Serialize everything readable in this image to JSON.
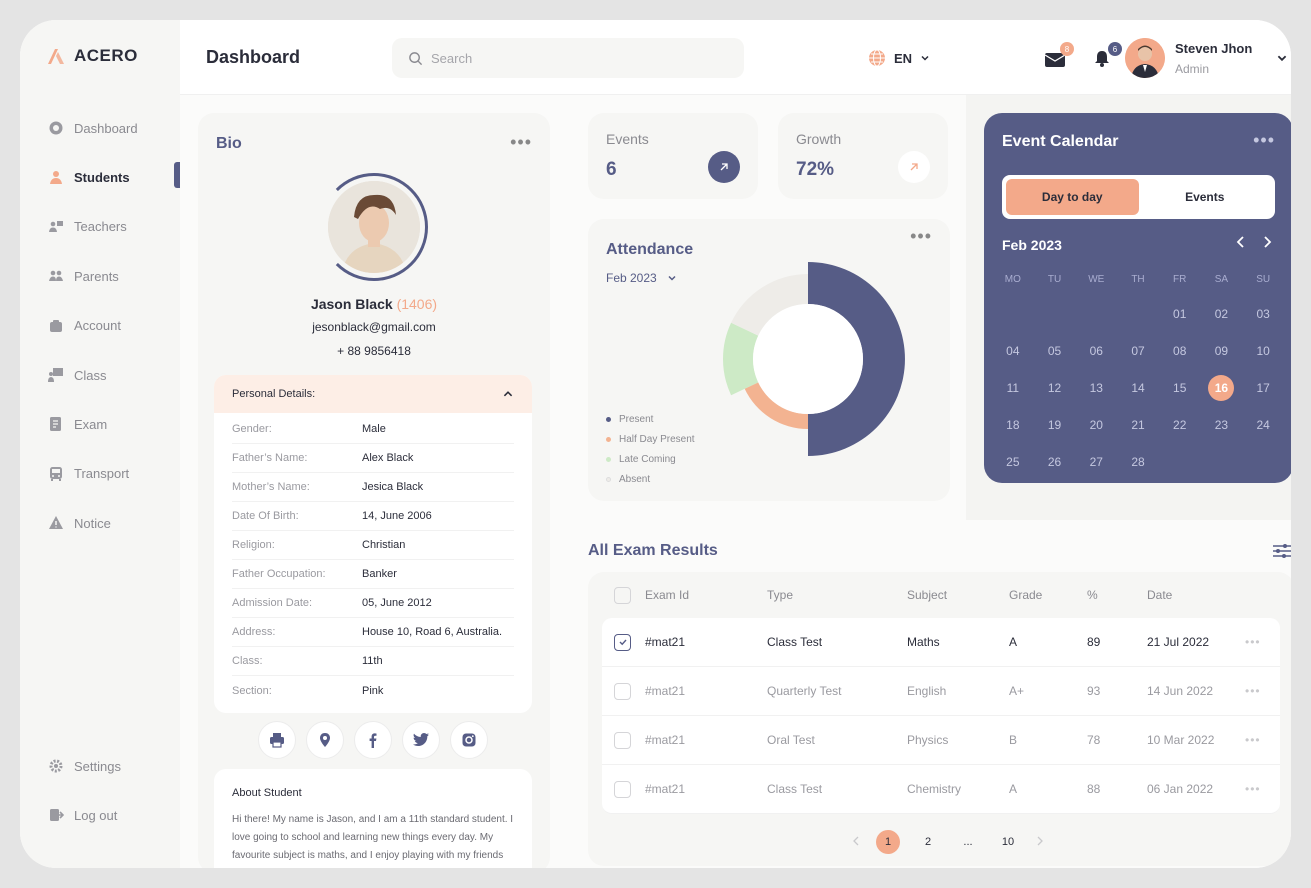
{
  "brand": {
    "name": "ACERO"
  },
  "sidebar": {
    "items": [
      {
        "label": "Dashboard",
        "icon": "dashboard-icon"
      },
      {
        "label": "Students",
        "icon": "student-icon"
      },
      {
        "label": "Teachers",
        "icon": "teachers-icon"
      },
      {
        "label": "Parents",
        "icon": "parents-icon"
      },
      {
        "label": "Account",
        "icon": "account-icon"
      },
      {
        "label": "Class",
        "icon": "class-icon"
      },
      {
        "label": "Exam",
        "icon": "exam-icon"
      },
      {
        "label": "Transport",
        "icon": "transport-icon"
      },
      {
        "label": "Notice",
        "icon": "notice-icon"
      }
    ],
    "active": "Students",
    "settings_label": "Settings",
    "logout_label": "Log out"
  },
  "header": {
    "title": "Dashboard",
    "search_placeholder": "Search",
    "language": "EN",
    "mail_count": "8",
    "notification_count": "6",
    "user_name": "Steven Jhon",
    "user_role": "Admin"
  },
  "bio": {
    "title": "Bio",
    "name": "Jason Black",
    "student_id": "(1406)",
    "email": "jesonblack@gmail.com",
    "phone": "+ 88 9856418",
    "details_title": "Personal Details:",
    "details": [
      {
        "key": "Gender:",
        "value": "Male"
      },
      {
        "key": "Father’s Name:",
        "value": "Alex Black"
      },
      {
        "key": "Mother’s Name:",
        "value": "Jesica Black"
      },
      {
        "key": "Date Of Birth:",
        "value": "14, June 2006"
      },
      {
        "key": "Religion:",
        "value": "Christian"
      },
      {
        "key": "Father Occupation:",
        "value": "Banker"
      },
      {
        "key": "Admission Date:",
        "value": "05, June 2012"
      },
      {
        "key": "Address:",
        "value": "House 10, Road 6, Australia."
      },
      {
        "key": "Class:",
        "value": "11th"
      },
      {
        "key": "Section:",
        "value": "Pink"
      }
    ],
    "about_title": "About Student",
    "about_text": "Hi there! My name is Jason, and I am a 11th standard student. I love going to school and learning new things every day. My favourite subject is maths, and I enjoy playing with my friends"
  },
  "stats": {
    "events_label": "Events",
    "events_value": "6",
    "growth_label": "Growth",
    "growth_value": "72%"
  },
  "attendance": {
    "title": "Attendance",
    "month": "Feb 2023",
    "legend": [
      "Present",
      "Half Day Present",
      "Late Coming",
      "Absent"
    ],
    "colors": [
      "#565c86",
      "#f3b391",
      "#cdeac6",
      "#eeece8"
    ]
  },
  "chart_data": {
    "type": "pie",
    "categories": [
      "Present",
      "Half Day Present",
      "Late Coming",
      "Absent"
    ],
    "values": [
      50,
      18,
      14,
      18
    ]
  },
  "calendar": {
    "title": "Event Calendar",
    "tabs": [
      "Day to day",
      "Events"
    ],
    "active_tab": "Day to day",
    "month": "Feb 2023",
    "weekdays": [
      "MO",
      "TU",
      "WE",
      "TH",
      "FR",
      "SA",
      "SU"
    ],
    "days": [
      "",
      "",
      "",
      "",
      "01",
      "02",
      "03",
      "04",
      "05",
      "06",
      "07",
      "08",
      "09",
      "10",
      "11",
      "12",
      "13",
      "14",
      "15",
      "16",
      "17",
      "18",
      "19",
      "20",
      "21",
      "22",
      "23",
      "24",
      "25",
      "26",
      "27",
      "28"
    ],
    "today": "16"
  },
  "exams": {
    "title": "All Exam Results",
    "columns": [
      "Exam Id",
      "Type",
      "Subject",
      "Grade",
      "%",
      "Date"
    ],
    "rows": [
      {
        "id": "#mat21",
        "type": "Class Test",
        "subject": "Maths",
        "grade": "A",
        "pct": "89",
        "date": "21 Jul 2022",
        "checked": true
      },
      {
        "id": "#mat21",
        "type": "Quarterly Test",
        "subject": "English",
        "grade": "A+",
        "pct": "93",
        "date": "14 Jun 2022",
        "checked": false
      },
      {
        "id": "#mat21",
        "type": "Oral Test",
        "subject": "Physics",
        "grade": "B",
        "pct": "78",
        "date": "10 Mar 2022",
        "checked": false
      },
      {
        "id": "#mat21",
        "type": "Class Test",
        "subject": "Chemistry",
        "grade": "A",
        "pct": "88",
        "date": "06 Jan 2022",
        "checked": false
      }
    ],
    "pages": [
      "1",
      "2",
      "...",
      "10"
    ],
    "current_page": "1"
  }
}
